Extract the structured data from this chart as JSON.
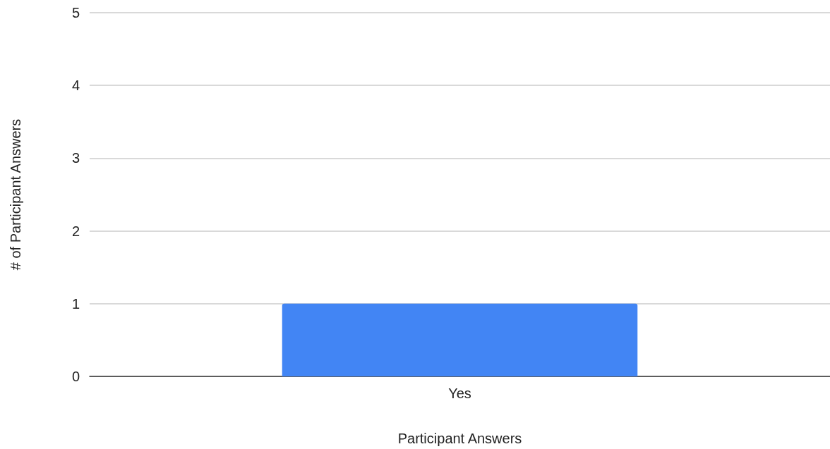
{
  "chart_data": {
    "type": "bar",
    "xlabel": "Participant Answers",
    "ylabel": "# of Participant Answers",
    "categories": [
      "Yes"
    ],
    "values": [
      1
    ],
    "color": "#4285f4",
    "ylim": [
      0,
      5
    ],
    "yticks": [
      0,
      1,
      2,
      3,
      4,
      5
    ],
    "grid": "y"
  }
}
